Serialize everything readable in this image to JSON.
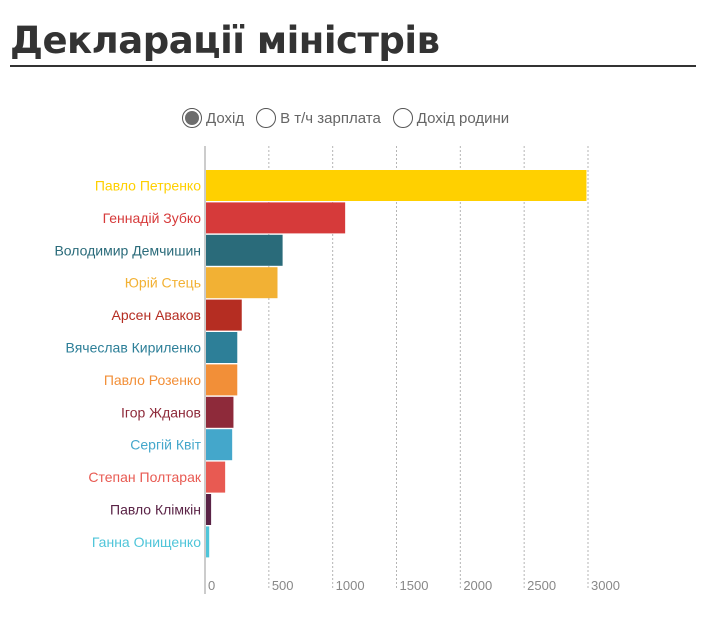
{
  "title": "Декларації міністрів",
  "filters": [
    {
      "label": "Дохід",
      "checked": true
    },
    {
      "label": "В т/ч зарплата",
      "checked": false
    },
    {
      "label": "Дохід родини",
      "checked": false
    }
  ],
  "chart_data": {
    "type": "bar",
    "orientation": "horizontal",
    "title": "Декларації міністрів",
    "xlim": [
      0,
      3000
    ],
    "ticks": [
      "0",
      "500",
      "1000",
      "1500",
      "2000",
      "2500",
      "3000"
    ],
    "tick_values": [
      0,
      500,
      1000,
      1500,
      2000,
      2500,
      3000
    ],
    "grid": "vertical dotted",
    "categories": [
      "Павло Петренко",
      "Геннадій Зубко",
      "Володимир Демчишин",
      "Юрій Стець",
      "Арсен Аваков",
      "Вячеслав Кириленко",
      "Павло Розенко",
      "Ігор Жданов",
      "Сергій Квіт",
      "Степан Полтарак",
      "Павло Клімкін",
      "Ганна Онищенко"
    ],
    "values": [
      2980,
      1090,
      600,
      560,
      280,
      245,
      245,
      215,
      205,
      150,
      40,
      25
    ],
    "colors": [
      "#ffd000",
      "#d63a3a",
      "#2a6b7a",
      "#f2b134",
      "#b52d22",
      "#2d7f98",
      "#f28f38",
      "#8e2a3a",
      "#44a7cb",
      "#e85a52",
      "#5a2346",
      "#4fc5d9"
    ]
  }
}
